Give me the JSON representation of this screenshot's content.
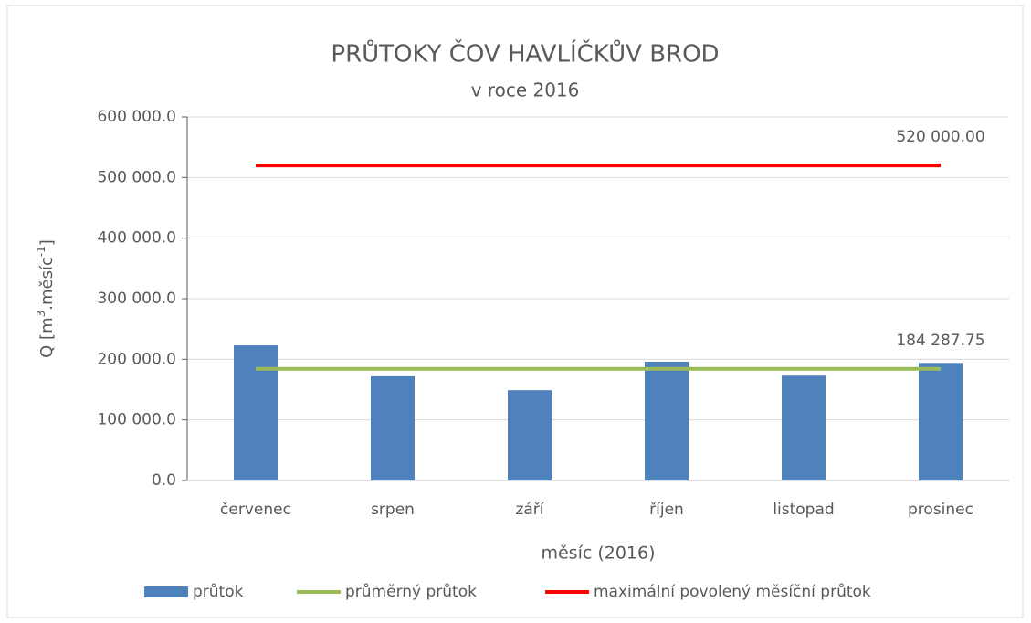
{
  "chart_data": {
    "type": "bar",
    "title": "PRŮTOKY ČOV HAVLÍČKŮV BROD",
    "subtitle": "v roce 2016",
    "x_label": "měsíc (2016)",
    "y_label_parts": [
      "Q [m",
      "3",
      ".měsíc",
      "-1",
      "]"
    ],
    "categories": [
      "červenec",
      "srpen",
      "září",
      "říjen",
      "listopad",
      "prosinec"
    ],
    "series": [
      {
        "name": "průtok",
        "type": "bar",
        "color": "#4f81bd",
        "values": [
          223000,
          172000,
          149000,
          196000,
          173000,
          194000
        ]
      },
      {
        "name": "průměrný průtok",
        "type": "line",
        "color": "#9bbb59",
        "values": [
          184287.75,
          184287.75,
          184287.75,
          184287.75,
          184287.75,
          184287.75
        ],
        "value_labels": [
          null,
          null,
          null,
          null,
          null,
          "184 287.75"
        ]
      },
      {
        "name": "maximální povolený měsíční průtok",
        "type": "line",
        "color": "#ff0000",
        "values": [
          520000,
          520000,
          520000,
          520000,
          520000,
          520000
        ],
        "value_labels": [
          null,
          null,
          null,
          null,
          null,
          "520 000.00"
        ]
      }
    ],
    "ylim": [
      0,
      600000
    ],
    "yticks": [
      {
        "value": 0,
        "label": "0.0"
      },
      {
        "value": 100000,
        "label": "100 000.0"
      },
      {
        "value": 200000,
        "label": "200 000.0"
      },
      {
        "value": 300000,
        "label": "300 000.0"
      },
      {
        "value": 400000,
        "label": "400 000.0"
      },
      {
        "value": 500000,
        "label": "500 000.0"
      },
      {
        "value": 600000,
        "label": "600 000.0"
      }
    ],
    "grid": true,
    "legend": "bottom"
  }
}
